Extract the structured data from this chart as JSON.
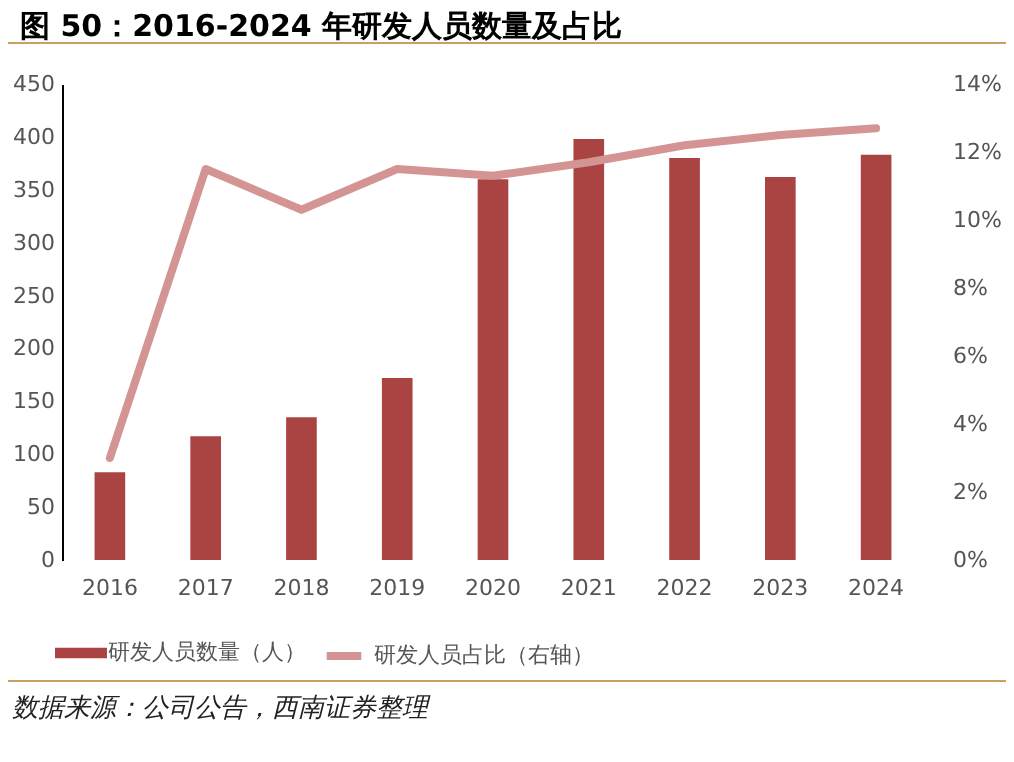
{
  "chart_data": {
    "type": "bar",
    "title": "图 50：2016-2024 年研发人员数量及占比",
    "categories": [
      "2016",
      "2017",
      "2018",
      "2019",
      "2020",
      "2021",
      "2022",
      "2023",
      "2024"
    ],
    "series": [
      {
        "name": "研发人员数量（人）",
        "color": "#a94442",
        "values": [
          83,
          117,
          135,
          172,
          360,
          398,
          380,
          362,
          383
        ]
      },
      {
        "name": "研发人员占比（右轴）",
        "type": "line",
        "axis": "y2",
        "color": "#d49494",
        "values": [
          3.0,
          11.5,
          10.3,
          11.5,
          11.3,
          11.7,
          12.2,
          12.5,
          12.7
        ]
      }
    ],
    "ylim": [
      0,
      450
    ],
    "yticks": [
      0,
      50,
      100,
      150,
      200,
      250,
      300,
      350,
      400,
      450
    ],
    "y2lim": [
      0,
      14
    ],
    "y2ticks": [
      {
        "value": 0,
        "label": "0%"
      },
      {
        "value": 2,
        "label": "2%"
      },
      {
        "value": 4,
        "label": "4%"
      },
      {
        "value": 6,
        "label": "6%"
      },
      {
        "value": 8,
        "label": "8%"
      },
      {
        "value": 10,
        "label": "10%"
      },
      {
        "value": 12,
        "label": "12%"
      },
      {
        "value": 14,
        "label": "14%"
      }
    ],
    "grid": false,
    "legend": "bottom",
    "marker": "none",
    "line_style": "solid",
    "annotations": [
      "数据来源：公司公告，西南证券整理"
    ]
  }
}
